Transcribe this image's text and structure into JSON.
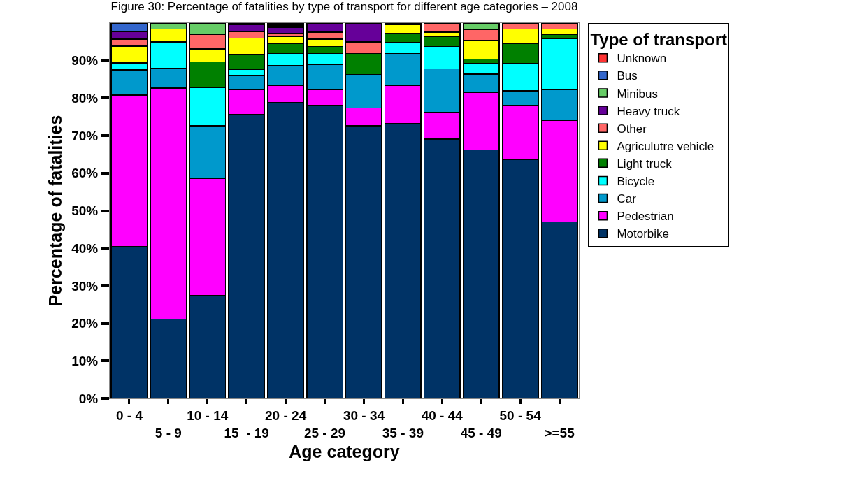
{
  "chart_data": {
    "type": "bar",
    "stacked": true,
    "title": "Figure 30: Percentage of fatalities by type of transport for different age categories – 2008",
    "xlabel": "Age category",
    "ylabel": "Percentage of fatalities",
    "legend_title": "Type of transport",
    "legend": "top right",
    "grid": false,
    "categories": [
      "0 - 4",
      "5 - 9",
      "10 - 14",
      "15  - 19",
      "20 - 24",
      "25 - 29",
      "30 - 34",
      "35 - 39",
      "40 - 44",
      "45 - 49",
      "50 - 54",
      ">=55"
    ],
    "ylim": [
      0,
      100
    ],
    "yticks": [
      {
        "value": 0,
        "label": "0%"
      },
      {
        "value": 10,
        "label": "10%"
      },
      {
        "value": 20,
        "label": "20%"
      },
      {
        "value": 30,
        "label": "30%"
      },
      {
        "value": 40,
        "label": "40%"
      },
      {
        "value": 50,
        "label": "50%"
      },
      {
        "value": 60,
        "label": "60%"
      },
      {
        "value": 70,
        "label": "70%"
      },
      {
        "value": 80,
        "label": "80%"
      },
      {
        "value": 90,
        "label": "90%"
      }
    ],
    "series": [
      {
        "name": "Motorbike",
        "color": "#003366",
        "values": [
          40.5,
          21.1,
          27.5,
          75.7,
          78.8,
          78.1,
          72.6,
          73.3,
          69.1,
          66.2,
          63.6,
          47.0
        ]
      },
      {
        "name": "Pedestrian",
        "color": "#ff00ff",
        "values": [
          40.3,
          61.6,
          31.2,
          6.6,
          4.5,
          4.1,
          4.8,
          10.0,
          7.2,
          15.3,
          14.5,
          27.0
        ]
      },
      {
        "name": "Car",
        "color": "#0099cc",
        "values": [
          6.7,
          5.2,
          13.9,
          3.7,
          5.3,
          6.8,
          8.9,
          8.6,
          11.5,
          4.9,
          3.8,
          8.3
        ]
      },
      {
        "name": "Bicycle",
        "color": "#00ffff",
        "values": [
          1.9,
          7.1,
          10.3,
          1.6,
          3.3,
          2.9,
          null,
          3.0,
          6.0,
          2.9,
          7.4,
          13.6
        ]
      },
      {
        "name": "Light truck",
        "color": "#008000",
        "values": [
          null,
          null,
          6.8,
          4.0,
          2.6,
          1.9,
          5.6,
          2.3,
          2.7,
          1.1,
          5.2,
          1.0
        ]
      },
      {
        "name": "Agriculutre vehicle",
        "color": "#ffff00",
        "values": [
          4.5,
          3.4,
          3.4,
          4.4,
          2.0,
          1.9,
          null,
          2.3,
          1.1,
          4.9,
          3.9,
          1.5
        ]
      },
      {
        "name": "Other",
        "color": "#ff6666",
        "values": [
          1.8,
          null,
          3.8,
          1.7,
          0.7,
          1.9,
          3.1,
          null,
          2.4,
          3.0,
          1.6,
          1.6
        ]
      },
      {
        "name": "Heavy truck",
        "color": "#660099",
        "values": [
          2.1,
          null,
          null,
          1.8,
          1.7,
          2.4,
          4.7,
          null,
          null,
          null,
          null,
          null
        ]
      },
      {
        "name": "Minibus",
        "color": "#66cc66",
        "values": [
          null,
          1.6,
          3.1,
          0.5,
          null,
          null,
          null,
          0.5,
          null,
          1.7,
          null,
          null
        ]
      },
      {
        "name": "Bus",
        "color": "#3366cc",
        "values": [
          2.2,
          null,
          null,
          null,
          null,
          null,
          0.3,
          null,
          null,
          null,
          null,
          null
        ]
      },
      {
        "name": "Unknown",
        "color": "#ff3333",
        "values": [
          null,
          null,
          null,
          null,
          null,
          null,
          null,
          null,
          null,
          null,
          null,
          null
        ]
      },
      {
        "color": "#000000",
        "values": [
          null,
          null,
          null,
          null,
          1.1,
          null,
          null,
          null,
          null,
          null,
          null,
          null
        ]
      }
    ]
  }
}
